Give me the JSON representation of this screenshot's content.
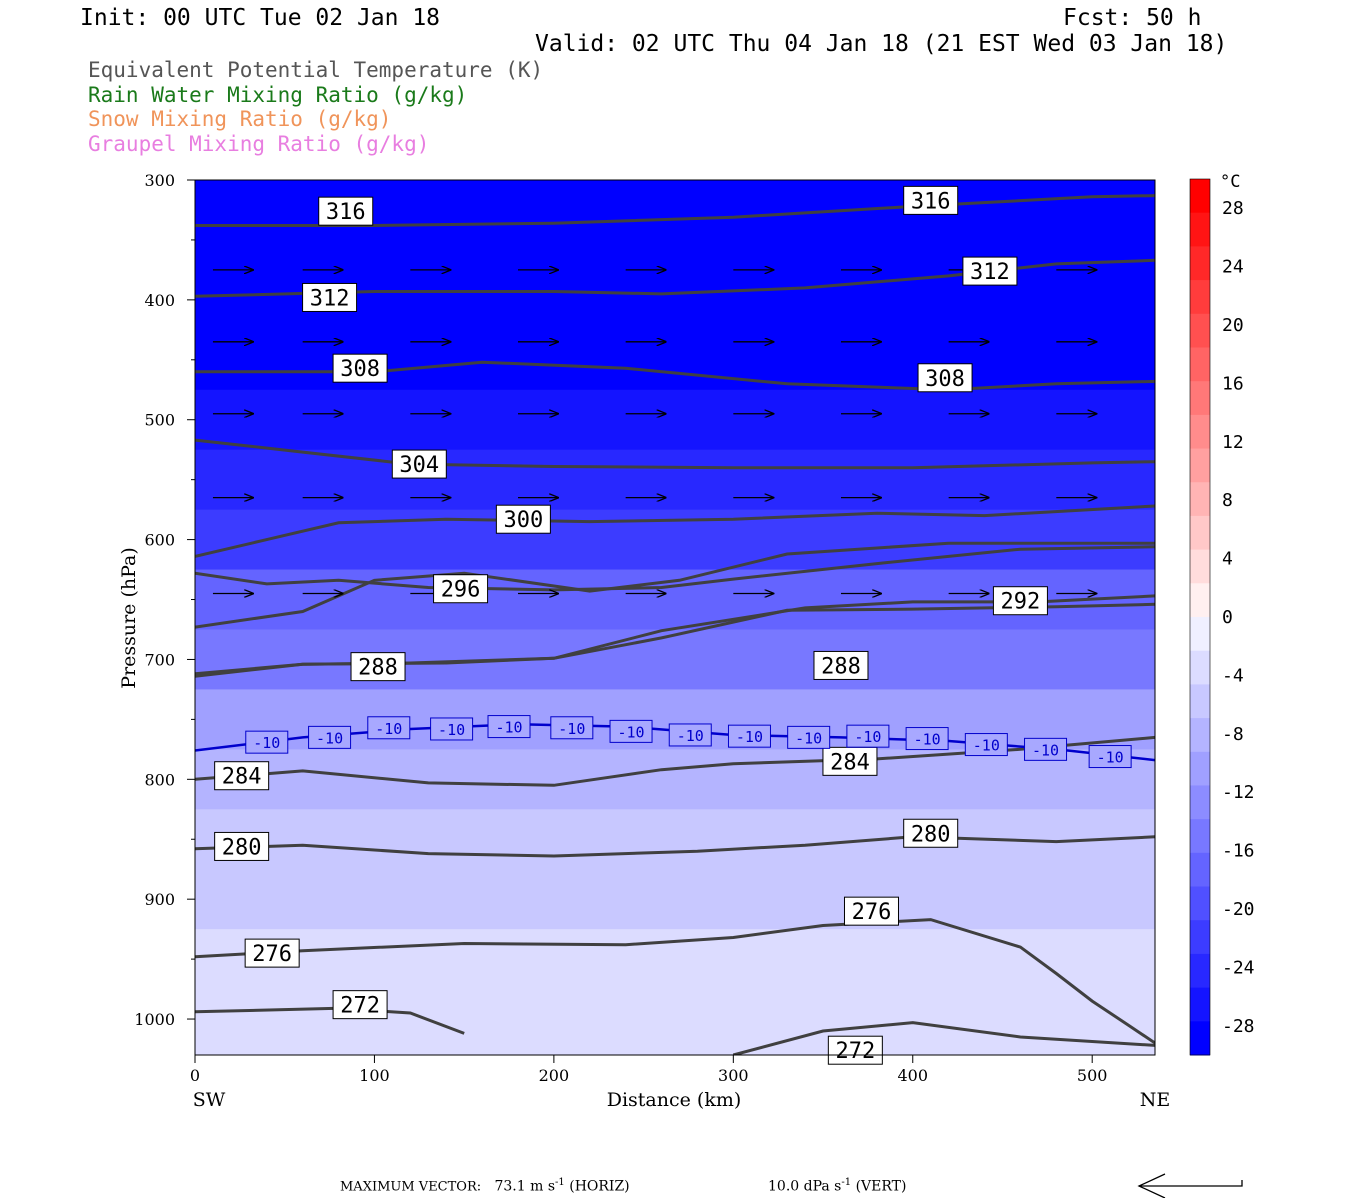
{
  "header": {
    "init": "Init: 00 UTC Tue 02 Jan 18",
    "fcst": "Fcst:   50 h",
    "valid": "Valid: 02 UTC Thu 04 Jan 18 (21 EST Wed 03 Jan 18)"
  },
  "legend": [
    {
      "label": "Equivalent Potential Temperature (K)",
      "color": "#555555"
    },
    {
      "label": "Rain Water Mixing Ratio (g/kg)",
      "color": "#1a7a1a"
    },
    {
      "label": "Snow Mixing Ratio (g/kg)",
      "color": "#f0945a"
    },
    {
      "label": "Graupel Mixing Ratio (g/kg)",
      "color": "#e87ee0"
    }
  ],
  "chart_data": {
    "type": "contour",
    "ylabel": "Pressure (hPa)",
    "xlabel": "Distance (km)",
    "x_end_labels": {
      "left": "SW",
      "right": "NE"
    },
    "xlim": [
      0,
      535
    ],
    "ylim": [
      300,
      1030
    ],
    "x_ticks": [
      0,
      100,
      200,
      300,
      400,
      500
    ],
    "y_ticks": [
      300,
      400,
      500,
      600,
      700,
      800,
      900,
      1000
    ],
    "theta_e_contours": [
      {
        "value": 316,
        "points": [
          [
            0,
            338
          ],
          [
            100,
            338
          ],
          [
            200,
            336
          ],
          [
            300,
            331
          ],
          [
            400,
            322
          ],
          [
            500,
            314
          ],
          [
            535,
            313
          ]
        ],
        "labels": [
          [
            84,
            326
          ],
          [
            410,
            317
          ]
        ]
      },
      {
        "value": 312,
        "points": [
          [
            0,
            397
          ],
          [
            100,
            393
          ],
          [
            200,
            393
          ],
          [
            260,
            395
          ],
          [
            340,
            390
          ],
          [
            420,
            380
          ],
          [
            480,
            370
          ],
          [
            535,
            367
          ]
        ],
        "labels": [
          [
            75,
            398
          ],
          [
            443,
            376
          ]
        ]
      },
      {
        "value": 308,
        "points": [
          [
            0,
            460
          ],
          [
            100,
            460
          ],
          [
            160,
            452
          ],
          [
            240,
            457
          ],
          [
            330,
            470
          ],
          [
            420,
            475
          ],
          [
            480,
            470
          ],
          [
            535,
            468
          ]
        ],
        "labels": [
          [
            92,
            457
          ],
          [
            418,
            465
          ]
        ]
      },
      {
        "value": 304,
        "points": [
          [
            0,
            517
          ],
          [
            60,
            527
          ],
          [
            120,
            537
          ],
          [
            200,
            539
          ],
          [
            300,
            540
          ],
          [
            400,
            540
          ],
          [
            500,
            536
          ],
          [
            535,
            535
          ]
        ],
        "labels": [
          [
            125,
            537
          ]
        ]
      },
      {
        "value": 300,
        "points": [
          [
            0,
            614
          ],
          [
            40,
            600
          ],
          [
            80,
            586
          ],
          [
            140,
            583
          ],
          [
            220,
            585
          ],
          [
            300,
            583
          ],
          [
            380,
            578
          ],
          [
            440,
            580
          ],
          [
            535,
            572
          ]
        ],
        "labels": [
          [
            183,
            583
          ]
        ]
      },
      {
        "value": 296,
        "points": [
          [
            0,
            628
          ],
          [
            40,
            637
          ],
          [
            80,
            634
          ],
          [
            130,
            640
          ],
          [
            200,
            642
          ],
          [
            260,
            640
          ],
          [
            300,
            633
          ],
          [
            380,
            620
          ],
          [
            460,
            608
          ],
          [
            535,
            606
          ]
        ],
        "labels": [
          [
            148,
            641
          ]
        ]
      },
      {
        "value": 292,
        "points": [
          [
            0,
            673
          ],
          [
            60,
            660
          ],
          [
            100,
            634
          ],
          [
            150,
            628
          ],
          [
            220,
            643
          ],
          [
            270,
            634
          ],
          [
            330,
            612
          ],
          [
            420,
            603
          ],
          [
            500,
            603
          ],
          [
            535,
            603
          ]
        ],
        "labels": [
          [
            460,
            651
          ]
        ]
      },
      {
        "value": 288,
        "points": [
          [
            0,
            712
          ],
          [
            60,
            704
          ],
          [
            140,
            703
          ],
          [
            200,
            699
          ],
          [
            260,
            676
          ],
          [
            340,
            657
          ],
          [
            400,
            652
          ],
          [
            470,
            652
          ],
          [
            535,
            647
          ]
        ],
        "labels": [
          [
            360,
            705
          ]
        ]
      },
      {
        "value": 288,
        "points": [
          [
            0,
            714
          ],
          [
            60,
            704
          ],
          [
            120,
            703
          ],
          [
            200,
            699
          ],
          [
            260,
            682
          ],
          [
            330,
            659
          ],
          [
            400,
            658
          ],
          [
            480,
            656
          ],
          [
            535,
            654
          ]
        ],
        "labels": [
          [
            102,
            706
          ]
        ]
      },
      {
        "value": 284,
        "points": [
          [
            0,
            800
          ],
          [
            60,
            793
          ],
          [
            130,
            803
          ],
          [
            200,
            805
          ],
          [
            260,
            792
          ],
          [
            300,
            787
          ],
          [
            380,
            783
          ],
          [
            460,
            775
          ],
          [
            535,
            765
          ]
        ],
        "labels": [
          [
            365,
            785
          ],
          [
            26,
            797
          ]
        ]
      },
      {
        "value": 280,
        "points": [
          [
            0,
            858
          ],
          [
            60,
            855
          ],
          [
            130,
            862
          ],
          [
            200,
            864
          ],
          [
            280,
            860
          ],
          [
            340,
            855
          ],
          [
            400,
            848
          ],
          [
            480,
            852
          ],
          [
            535,
            848
          ]
        ],
        "labels": [
          [
            26,
            856
          ],
          [
            410,
            845
          ]
        ]
      },
      {
        "value": 276,
        "points": [
          [
            0,
            948
          ],
          [
            60,
            943
          ],
          [
            150,
            937
          ],
          [
            240,
            938
          ],
          [
            300,
            932
          ],
          [
            350,
            922
          ],
          [
            410,
            917
          ],
          [
            460,
            940
          ],
          [
            480,
            962
          ],
          [
            500,
            985
          ],
          [
            520,
            1005
          ],
          [
            535,
            1020
          ]
        ],
        "labels": [
          [
            43,
            945
          ],
          [
            377,
            910
          ]
        ]
      },
      {
        "value": 272,
        "points": [
          [
            0,
            994
          ],
          [
            80,
            991
          ],
          [
            120,
            995
          ],
          [
            150,
            1012
          ]
        ],
        "labels": [
          [
            92,
            988
          ]
        ]
      },
      {
        "value": 272,
        "points": [
          [
            300,
            1030
          ],
          [
            350,
            1010
          ],
          [
            400,
            1003
          ],
          [
            460,
            1015
          ],
          [
            535,
            1022
          ]
        ],
        "labels": [
          [
            368,
            1026
          ]
        ]
      }
    ],
    "isotherm_minus10": {
      "value": -10,
      "color": "#0000cc",
      "points": [
        [
          0,
          776
        ],
        [
          60,
          765
        ],
        [
          120,
          758
        ],
        [
          180,
          754
        ],
        [
          240,
          756
        ],
        [
          300,
          763
        ],
        [
          360,
          765
        ],
        [
          420,
          768
        ],
        [
          480,
          775
        ],
        [
          535,
          784
        ]
      ],
      "labels": [
        [
          40,
          769
        ],
        [
          75,
          765
        ],
        [
          108,
          757
        ],
        [
          143,
          758
        ],
        [
          175,
          756
        ],
        [
          210,
          757
        ],
        [
          243,
          760
        ],
        [
          276,
          763
        ],
        [
          309,
          764
        ],
        [
          342,
          765
        ],
        [
          375,
          764
        ],
        [
          408,
          766
        ],
        [
          441,
          771
        ],
        [
          474,
          775
        ],
        [
          510,
          781
        ]
      ]
    },
    "temperature_colorbar": {
      "unit": "°C",
      "tick_labels": [
        28,
        24,
        20,
        16,
        12,
        8,
        4,
        0,
        -4,
        -8,
        -12,
        -16,
        -20,
        -24,
        -28
      ],
      "colors": [
        "#0000ff",
        "#1414ff",
        "#2828ff",
        "#3c3cff",
        "#5050ff",
        "#6464ff",
        "#7878ff",
        "#8c8cff",
        "#a0a0ff",
        "#b4b4ff",
        "#c8c8ff",
        "#dcdcff",
        "#f0f0ff",
        "#fff0f0",
        "#ffdcdc",
        "#ffc8c8",
        "#ffb4b4",
        "#ffa0a0",
        "#ff8c8c",
        "#ff7878",
        "#ff6464",
        "#ff5050",
        "#ff3c3c",
        "#ff2828",
        "#ff1414",
        "#ff0000"
      ]
    },
    "temperature_field_c": {
      "pressure_levels": [
        300,
        350,
        400,
        450,
        500,
        550,
        600,
        650,
        700,
        750,
        800,
        850,
        900,
        950,
        1000
      ],
      "values_c": [
        -45,
        -42,
        -37,
        -31,
        -27,
        -24,
        -21,
        -18,
        -14,
        -11,
        -8,
        -6,
        -5,
        -4,
        -3
      ]
    },
    "wind_vectors": [
      {
        "p": 375,
        "x": [
          10,
          60,
          120,
          180,
          240,
          300,
          360,
          420,
          480
        ]
      },
      {
        "p": 435,
        "x": [
          10,
          60,
          120,
          180,
          240,
          300,
          360,
          420,
          480
        ]
      },
      {
        "p": 495,
        "x": [
          10,
          60,
          120,
          180,
          240,
          300,
          360,
          420,
          480
        ]
      },
      {
        "p": 565,
        "x": [
          10,
          60,
          120,
          180,
          240,
          300,
          360,
          420,
          480
        ]
      },
      {
        "p": 645,
        "x": [
          10,
          60,
          120,
          180,
          240,
          300,
          360,
          420,
          480
        ]
      }
    ],
    "grid": false
  },
  "footer": {
    "max_vector_label": "MAXIMUM VECTOR:",
    "horiz_value": "73.1 m s",
    "horiz_unit": "(HORIZ)",
    "vert_value": "10.0 dPa s",
    "vert_unit": "(VERT)",
    "exponent": "-1"
  }
}
